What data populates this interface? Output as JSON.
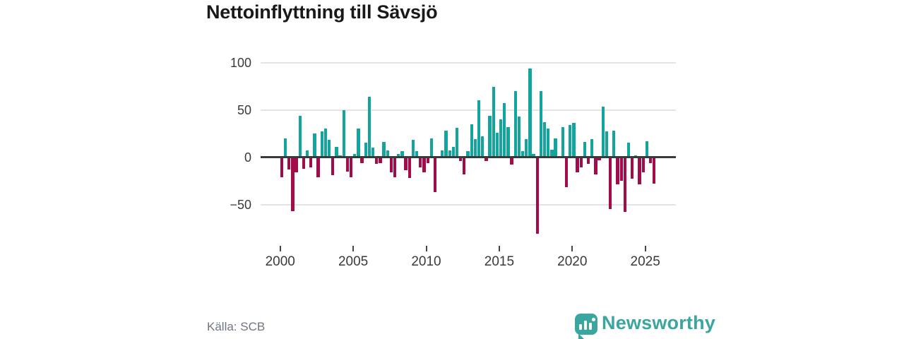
{
  "header": {
    "title": "Nettoinflyttning till Sävsjö"
  },
  "footer": {
    "source": "Källa: SCB",
    "logo_text": "Newsworthy"
  },
  "colors": {
    "positive": "#12a5a0",
    "negative": "#a30c4b",
    "logo_teal": "#3ba59f",
    "axis_line": "#3a3a3a",
    "gridline": "#e4e4e4",
    "tick": "#464646"
  },
  "chart_data": {
    "type": "bar",
    "title": "Nettoinflyttning till Sävsjö",
    "frequency": "quarterly",
    "start": "2000Q1",
    "end": "2025Q3",
    "values": [
      -21,
      20,
      -13,
      -57,
      -16,
      44,
      -12,
      7,
      -11,
      25,
      -21,
      27,
      30,
      18,
      -19,
      11,
      2,
      50,
      -15,
      -21,
      3,
      30,
      -6,
      15,
      64,
      10,
      -7,
      -6,
      16,
      7,
      -16,
      -21,
      3,
      6,
      -14,
      -22,
      18,
      6,
      -11,
      -16,
      -6,
      20,
      -37,
      0,
      7,
      28,
      7,
      11,
      31,
      -4,
      -18,
      6,
      35,
      19,
      60,
      22,
      -4,
      44,
      74,
      26,
      40,
      57,
      32,
      -8,
      70,
      43,
      6,
      19,
      94,
      3,
      -81,
      70,
      37,
      30,
      8,
      20,
      0,
      32,
      -32,
      34,
      36,
      -16,
      -11,
      16,
      -7,
      19,
      -18,
      -3,
      53,
      27,
      -55,
      28,
      -29,
      -25,
      -58,
      15,
      -23,
      2,
      -29,
      -16,
      17,
      -6,
      -28
    ],
    "x_ticks": [
      2000,
      2005,
      2010,
      2015,
      2020,
      2025
    ],
    "y_ticks": [
      100,
      50,
      0,
      -50
    ],
    "y_tick_labels": [
      "100",
      "50",
      "0",
      "−50"
    ],
    "ylim": [
      -85,
      105
    ],
    "grid": "horizontal",
    "legend": "none",
    "positive_color": "#12a5a0",
    "negative_color": "#a30c4b"
  }
}
